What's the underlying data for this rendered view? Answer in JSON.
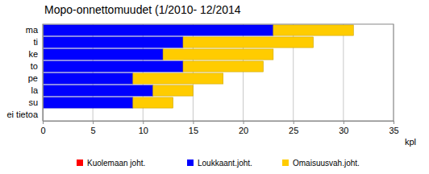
{
  "chart_data": {
    "type": "bar",
    "orientation": "horizontal",
    "stacked": true,
    "title": "Mopo-onnettomuudet (1/2010- 12/2014",
    "xlabel": "kpl",
    "categories": [
      "ma",
      "ti",
      "ke",
      "to",
      "pe",
      "la",
      "su",
      "ei tietoa"
    ],
    "series": [
      {
        "name": "Kuolemaan joht.",
        "color": "#ff0000",
        "values": [
          0,
          0,
          0,
          0,
          0,
          0,
          0,
          0
        ]
      },
      {
        "name": "Loukkaant.joht.",
        "color": "#0000ff",
        "values": [
          23,
          14,
          12,
          14,
          9,
          11,
          9,
          0
        ]
      },
      {
        "name": "Omaisuusvah.joht.",
        "color": "#ffcc00",
        "values": [
          8,
          13,
          11,
          8,
          9,
          4,
          4,
          0
        ]
      }
    ],
    "xlim": [
      0,
      35
    ],
    "xticks": [
      0,
      5,
      10,
      15,
      20,
      25,
      30,
      35
    ],
    "grid": true,
    "legend": "bottom"
  }
}
